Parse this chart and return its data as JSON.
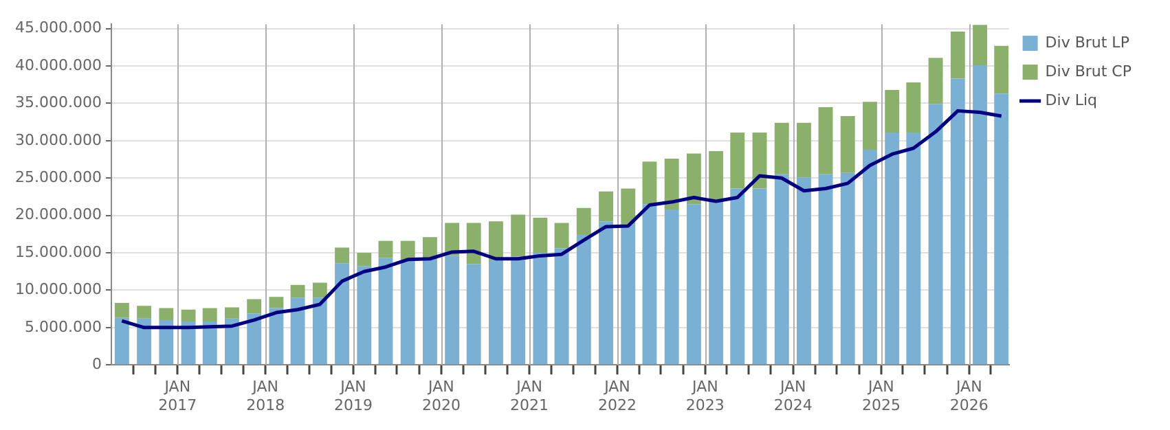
{
  "chart_data": {
    "type": "bar",
    "stacked": true,
    "x": [
      "2016-05-15",
      "2016-08-15",
      "2016-11-15",
      "2017-02-15",
      "2017-05-15",
      "2017-08-15",
      "2017-11-15",
      "2018-02-15",
      "2018-05-15",
      "2018-08-15",
      "2018-11-15",
      "2019-02-15",
      "2019-05-15",
      "2019-08-15",
      "2019-11-15",
      "2020-02-15",
      "2020-05-15",
      "2020-08-15",
      "2020-11-15",
      "2021-02-15",
      "2021-05-15",
      "2021-08-15",
      "2021-11-15",
      "2022-02-15",
      "2022-05-15",
      "2022-08-15",
      "2022-11-15",
      "2023-02-15",
      "2023-05-15",
      "2023-08-15",
      "2023-11-15",
      "2024-02-15",
      "2024-05-15",
      "2024-08-15",
      "2024-11-15",
      "2025-02-15",
      "2025-05-15",
      "2025-08-15",
      "2025-11-15",
      "2026-02-15",
      "2026-05-15"
    ],
    "series": [
      {
        "name": "Div Brut LP",
        "color": "#7ab0d4",
        "values": [
          6300000,
          6200000,
          6000000,
          5800000,
          5800000,
          6200000,
          6900000,
          7600000,
          9000000,
          9000000,
          13600000,
          13200000,
          14300000,
          14100000,
          14100000,
          14600000,
          13500000,
          14000000,
          14500000,
          15000000,
          15600000,
          17400000,
          19200000,
          18800000,
          21500000,
          20800000,
          21500000,
          22100000,
          23600000,
          23600000,
          25500000,
          25100000,
          25500000,
          25700000,
          28800000,
          31100000,
          31100000,
          34900000,
          38300000,
          40100000,
          36300000
        ]
      },
      {
        "name": "Div Brut CP",
        "color": "#8bb06a",
        "values": [
          2000000,
          1700000,
          1600000,
          1600000,
          1800000,
          1500000,
          1900000,
          1500000,
          1700000,
          2000000,
          2100000,
          1800000,
          2300000,
          2500000,
          3000000,
          4400000,
          5500000,
          5200000,
          5600000,
          4700000,
          3400000,
          3600000,
          4000000,
          4800000,
          5700000,
          6800000,
          6800000,
          6500000,
          7500000,
          7500000,
          6900000,
          7300000,
          9000000,
          7600000,
          6400000,
          5700000,
          6700000,
          6200000,
          6300000,
          5400000,
          6400000
        ]
      },
      {
        "name": "Div Liq",
        "type": "line",
        "color": "#000080",
        "values": [
          5900000,
          5000000,
          5000000,
          5000000,
          5100000,
          5200000,
          6000000,
          7000000,
          7400000,
          8100000,
          11200000,
          12500000,
          13100000,
          14100000,
          14200000,
          15100000,
          15200000,
          14200000,
          14200000,
          14600000,
          14800000,
          16700000,
          18500000,
          18600000,
          21400000,
          21800000,
          22400000,
          21900000,
          22400000,
          25300000,
          25000000,
          23300000,
          23600000,
          24300000,
          26700000,
          28200000,
          29000000,
          31200000,
          34000000,
          33800000,
          33300000
        ]
      }
    ],
    "xlim": [
      "2016-04-01",
      "2026-06-15"
    ],
    "xticks": [
      {
        "value": "2016-07-01",
        "label": null
      },
      {
        "value": "2016-10-01",
        "label": null
      },
      {
        "value": "2017-01-01",
        "label": "JAN 2017"
      },
      {
        "value": "2017-04-01",
        "label": null
      },
      {
        "value": "2017-07-01",
        "label": null
      },
      {
        "value": "2017-10-01",
        "label": null
      },
      {
        "value": "2018-01-01",
        "label": "JAN 2018"
      },
      {
        "value": "2018-04-01",
        "label": null
      },
      {
        "value": "2018-07-01",
        "label": null
      },
      {
        "value": "2018-10-01",
        "label": null
      },
      {
        "value": "2019-01-01",
        "label": "JAN 2019"
      },
      {
        "value": "2019-04-01",
        "label": null
      },
      {
        "value": "2019-07-01",
        "label": null
      },
      {
        "value": "2019-10-01",
        "label": null
      },
      {
        "value": "2020-01-01",
        "label": "JAN 2020"
      },
      {
        "value": "2020-04-01",
        "label": null
      },
      {
        "value": "2020-07-01",
        "label": null
      },
      {
        "value": "2020-10-01",
        "label": null
      },
      {
        "value": "2021-01-01",
        "label": "JAN 2021"
      },
      {
        "value": "2021-04-01",
        "label": null
      },
      {
        "value": "2021-07-01",
        "label": null
      },
      {
        "value": "2021-10-01",
        "label": null
      },
      {
        "value": "2022-01-01",
        "label": "JAN 2022"
      },
      {
        "value": "2022-04-01",
        "label": null
      },
      {
        "value": "2022-07-01",
        "label": null
      },
      {
        "value": "2022-10-01",
        "label": null
      },
      {
        "value": "2023-01-01",
        "label": "JAN 2023"
      },
      {
        "value": "2023-04-01",
        "label": null
      },
      {
        "value": "2023-07-01",
        "label": null
      },
      {
        "value": "2023-10-01",
        "label": null
      },
      {
        "value": "2024-01-01",
        "label": "JAN 2024"
      },
      {
        "value": "2024-04-01",
        "label": null
      },
      {
        "value": "2024-07-01",
        "label": null
      },
      {
        "value": "2024-10-01",
        "label": null
      },
      {
        "value": "2025-01-01",
        "label": "JAN 2025"
      },
      {
        "value": "2025-04-01",
        "label": null
      },
      {
        "value": "2025-07-01",
        "label": null
      },
      {
        "value": "2025-10-01",
        "label": null
      },
      {
        "value": "2026-01-01",
        "label": "JAN 2026"
      },
      {
        "value": "2026-04-01",
        "label": null
      }
    ],
    "ylim": [
      0,
      45600000
    ],
    "yticks": [
      {
        "value": 0,
        "label": "0"
      },
      {
        "value": 5000000,
        "label": "5.000.000"
      },
      {
        "value": 10000000,
        "label": "10.000.000"
      },
      {
        "value": 15000000,
        "label": "15.000.000"
      },
      {
        "value": 20000000,
        "label": "20.000.000"
      },
      {
        "value": 25000000,
        "label": "25.000.000"
      },
      {
        "value": 30000000,
        "label": "30.000.000"
      },
      {
        "value": 35000000,
        "label": "35.000.000"
      },
      {
        "value": 40000000,
        "label": "40.000.000"
      },
      {
        "value": 45000000,
        "label": "45.000.000"
      }
    ],
    "grid": true,
    "legend": "top right",
    "marker": "none",
    "line_style": "solid"
  }
}
